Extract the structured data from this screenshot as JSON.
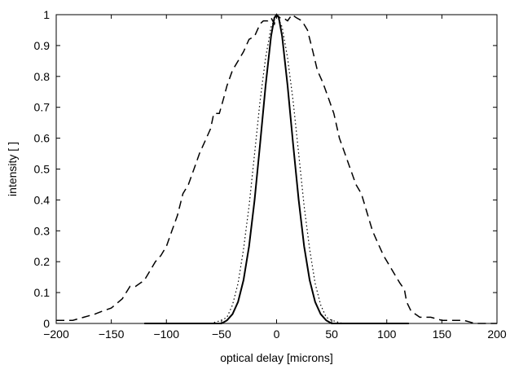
{
  "chart_data": {
    "type": "line",
    "title": "",
    "xlabel": "optical delay [microns]",
    "ylabel": "intensity [ ]",
    "xlim": [
      -200,
      200
    ],
    "ylim": [
      0,
      1
    ],
    "xticks": [
      -200,
      -150,
      -100,
      -50,
      0,
      50,
      100,
      150,
      200
    ],
    "yticks": [
      0,
      0.1,
      0.2,
      0.3,
      0.4,
      0.5,
      0.6,
      0.7,
      0.8,
      0.9,
      1
    ],
    "grid": false,
    "legend": "none",
    "series": [
      {
        "style": "dashed",
        "x": [
          -200,
          -185,
          -175,
          -165,
          -158,
          -150,
          -140,
          -133,
          -128,
          -120,
          -115,
          -110,
          -105,
          -100,
          -95,
          -90,
          -85,
          -80,
          -75,
          -70,
          -65,
          -60,
          -57,
          -52,
          -48,
          -45,
          -40,
          -35,
          -30,
          -25,
          -20,
          -15,
          -12,
          -8,
          -5,
          -2,
          0,
          3,
          6,
          10,
          14,
          18,
          23,
          28,
          33,
          37,
          42,
          47,
          52,
          57,
          62,
          67,
          72,
          77,
          82,
          87,
          92,
          97,
          102,
          107,
          112,
          116,
          118,
          122,
          130,
          140,
          150,
          160,
          170,
          180,
          190,
          200
        ],
        "y": [
          0.01,
          0.01,
          0.02,
          0.03,
          0.04,
          0.05,
          0.08,
          0.12,
          0.12,
          0.14,
          0.17,
          0.2,
          0.22,
          0.25,
          0.3,
          0.35,
          0.42,
          0.45,
          0.5,
          0.55,
          0.59,
          0.63,
          0.68,
          0.68,
          0.73,
          0.77,
          0.82,
          0.85,
          0.88,
          0.92,
          0.93,
          0.97,
          0.98,
          0.98,
          0.99,
          0.97,
          1.0,
          0.99,
          0.99,
          0.98,
          1.0,
          0.99,
          0.98,
          0.95,
          0.88,
          0.82,
          0.78,
          0.73,
          0.68,
          0.6,
          0.55,
          0.5,
          0.45,
          0.42,
          0.36,
          0.3,
          0.26,
          0.22,
          0.19,
          0.16,
          0.13,
          0.11,
          0.07,
          0.04,
          0.02,
          0.02,
          0.01,
          0.01,
          0.01,
          0.0,
          0.0,
          0.0
        ]
      },
      {
        "style": "solid",
        "x": [
          -120,
          -50,
          -45,
          -40,
          -35,
          -30,
          -25,
          -20,
          -15,
          -10,
          -5,
          -2,
          0,
          2,
          5,
          10,
          15,
          20,
          25,
          30,
          35,
          40,
          45,
          50,
          120
        ],
        "y": [
          0.0,
          0.0,
          0.01,
          0.03,
          0.07,
          0.14,
          0.25,
          0.4,
          0.58,
          0.77,
          0.93,
          0.99,
          1.0,
          0.99,
          0.93,
          0.77,
          0.58,
          0.4,
          0.25,
          0.14,
          0.07,
          0.03,
          0.01,
          0.0,
          0.0
        ]
      },
      {
        "style": "dotted",
        "x": [
          -60,
          -50,
          -45,
          -40,
          -35,
          -30,
          -25,
          -20,
          -15,
          -10,
          -5,
          0,
          5,
          10,
          15,
          20,
          25,
          30,
          35,
          40,
          45,
          50,
          60
        ],
        "y": [
          0.0,
          0.01,
          0.02,
          0.06,
          0.13,
          0.24,
          0.38,
          0.55,
          0.72,
          0.86,
          0.96,
          1.0,
          0.96,
          0.86,
          0.72,
          0.55,
          0.38,
          0.24,
          0.13,
          0.06,
          0.02,
          0.01,
          0.0
        ]
      }
    ]
  }
}
